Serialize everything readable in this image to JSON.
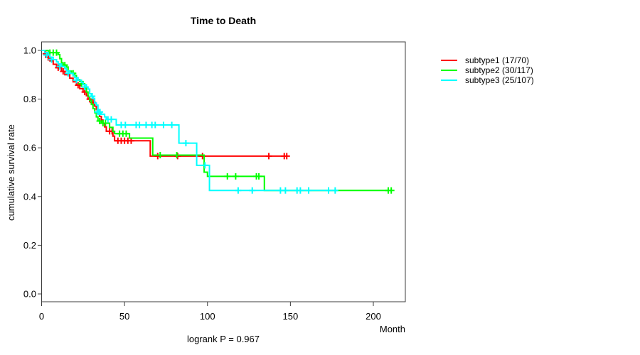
{
  "chart_data": {
    "type": "line",
    "variant": "kaplan-meier-step",
    "title": "Time to Death",
    "xlabel": "Month",
    "ylabel": "cumulative survival rate",
    "annotation": "logrank P = 0.967",
    "xlim": [
      0,
      219
    ],
    "ylim": [
      0,
      1.04
    ],
    "xticks": [
      0,
      50,
      100,
      150,
      200
    ],
    "yticks": [
      0.0,
      0.2,
      0.4,
      0.6,
      0.8,
      1.0
    ],
    "grid": false,
    "legend_position": "right-outside",
    "axis_color": "#3c3c3c",
    "series": [
      {
        "name": "subtype1 (17/70)",
        "color": "#ff0000",
        "end": 148,
        "steps": [
          [
            0,
            1.0
          ],
          [
            2,
            0.986
          ],
          [
            3,
            0.971
          ],
          [
            5,
            0.957
          ],
          [
            7,
            0.943
          ],
          [
            9,
            0.929
          ],
          [
            12,
            0.914
          ],
          [
            14,
            0.9
          ],
          [
            17,
            0.886
          ],
          [
            19,
            0.871
          ],
          [
            21,
            0.857
          ],
          [
            23,
            0.843
          ],
          [
            25,
            0.829
          ],
          [
            27,
            0.814
          ],
          [
            28,
            0.8
          ],
          [
            30,
            0.786
          ],
          [
            32,
            0.771
          ],
          [
            33,
            0.757
          ],
          [
            34,
            0.743
          ],
          [
            35,
            0.729
          ],
          [
            36,
            0.714
          ],
          [
            37,
            0.7
          ],
          [
            38,
            0.686
          ],
          [
            39,
            0.668
          ],
          [
            43,
            0.648
          ],
          [
            44,
            0.629
          ],
          [
            65.5,
            0.566
          ]
        ],
        "censors": [
          [
            2.5,
            0.986
          ],
          [
            4,
            0.971
          ],
          [
            10,
            0.929
          ],
          [
            13,
            0.914
          ],
          [
            22,
            0.857
          ],
          [
            26,
            0.829
          ],
          [
            29,
            0.8
          ],
          [
            31,
            0.786
          ],
          [
            41,
            0.668
          ],
          [
            42.5,
            0.668
          ],
          [
            46,
            0.629
          ],
          [
            48,
            0.629
          ],
          [
            50,
            0.629
          ],
          [
            52,
            0.629
          ],
          [
            54,
            0.629
          ],
          [
            70,
            0.566
          ],
          [
            82,
            0.566
          ],
          [
            97,
            0.566
          ],
          [
            137,
            0.566
          ],
          [
            146.3,
            0.566
          ],
          [
            147.8,
            0.566
          ]
        ]
      },
      {
        "name": "subtype2 (30/117)",
        "color": "#00ff00",
        "end": 211,
        "steps": [
          [
            0,
            1.0
          ],
          [
            4,
            0.991
          ],
          [
            10,
            0.983
          ],
          [
            11,
            0.966
          ],
          [
            12,
            0.949
          ],
          [
            13,
            0.94
          ],
          [
            15,
            0.932
          ],
          [
            16,
            0.915
          ],
          [
            18,
            0.906
          ],
          [
            20,
            0.897
          ],
          [
            21,
            0.88
          ],
          [
            23,
            0.872
          ],
          [
            25,
            0.863
          ],
          [
            26,
            0.846
          ],
          [
            27,
            0.829
          ],
          [
            28,
            0.812
          ],
          [
            29,
            0.795
          ],
          [
            30,
            0.778
          ],
          [
            31,
            0.761
          ],
          [
            32,
            0.744
          ],
          [
            33,
            0.727
          ],
          [
            34,
            0.71
          ],
          [
            36,
            0.701
          ],
          [
            41,
            0.684
          ],
          [
            43,
            0.667
          ],
          [
            44,
            0.658
          ],
          [
            53,
            0.64
          ],
          [
            67,
            0.57
          ],
          [
            98,
            0.5
          ],
          [
            100,
            0.483
          ],
          [
            134.3,
            0.425
          ]
        ],
        "censors": [
          [
            5,
            0.991
          ],
          [
            7,
            0.991
          ],
          [
            9,
            0.991
          ],
          [
            14,
            0.94
          ],
          [
            19,
            0.906
          ],
          [
            24,
            0.863
          ],
          [
            35,
            0.71
          ],
          [
            37,
            0.701
          ],
          [
            38.5,
            0.701
          ],
          [
            47,
            0.658
          ],
          [
            49,
            0.658
          ],
          [
            51,
            0.658
          ],
          [
            71.5,
            0.57
          ],
          [
            81.5,
            0.57
          ],
          [
            112,
            0.483
          ],
          [
            117,
            0.483
          ],
          [
            129.5,
            0.483
          ],
          [
            131,
            0.483
          ],
          [
            209,
            0.425
          ],
          [
            210.8,
            0.425
          ]
        ]
      },
      {
        "name": "subtype3 (25/107)",
        "color": "#00ffff",
        "end": 178,
        "steps": [
          [
            0,
            1.0
          ],
          [
            2,
            0.991
          ],
          [
            4,
            0.981
          ],
          [
            5,
            0.972
          ],
          [
            7,
            0.962
          ],
          [
            9,
            0.953
          ],
          [
            10,
            0.944
          ],
          [
            12,
            0.934
          ],
          [
            14,
            0.925
          ],
          [
            15,
            0.916
          ],
          [
            17,
            0.906
          ],
          [
            19,
            0.897
          ],
          [
            20,
            0.888
          ],
          [
            22,
            0.878
          ],
          [
            24,
            0.869
          ],
          [
            25,
            0.859
          ],
          [
            27,
            0.85
          ],
          [
            28,
            0.841
          ],
          [
            29,
            0.822
          ],
          [
            30,
            0.812
          ],
          [
            31,
            0.803
          ],
          [
            32,
            0.784
          ],
          [
            33,
            0.775
          ],
          [
            34,
            0.747
          ],
          [
            36,
            0.738
          ],
          [
            38,
            0.727
          ],
          [
            39,
            0.717
          ],
          [
            45,
            0.694
          ],
          [
            82.8,
            0.619
          ],
          [
            93.5,
            0.528
          ],
          [
            101.2,
            0.425
          ]
        ],
        "censors": [
          [
            3,
            0.981
          ],
          [
            6,
            0.962
          ],
          [
            11,
            0.934
          ],
          [
            16,
            0.906
          ],
          [
            21,
            0.878
          ],
          [
            26,
            0.85
          ],
          [
            30.5,
            0.812
          ],
          [
            33.5,
            0.747
          ],
          [
            34.5,
            0.747
          ],
          [
            35.2,
            0.747
          ],
          [
            40,
            0.717
          ],
          [
            42,
            0.717
          ],
          [
            48,
            0.694
          ],
          [
            50.5,
            0.694
          ],
          [
            57,
            0.694
          ],
          [
            59,
            0.694
          ],
          [
            63,
            0.694
          ],
          [
            66.5,
            0.694
          ],
          [
            68.5,
            0.694
          ],
          [
            73.5,
            0.694
          ],
          [
            78.5,
            0.694
          ],
          [
            87,
            0.619
          ],
          [
            98.5,
            0.528
          ],
          [
            118.5,
            0.425
          ],
          [
            127,
            0.425
          ],
          [
            144,
            0.425
          ],
          [
            147,
            0.425
          ],
          [
            154,
            0.425
          ],
          [
            156,
            0.425
          ],
          [
            161,
            0.425
          ],
          [
            173,
            0.425
          ],
          [
            177,
            0.425
          ]
        ]
      }
    ]
  }
}
